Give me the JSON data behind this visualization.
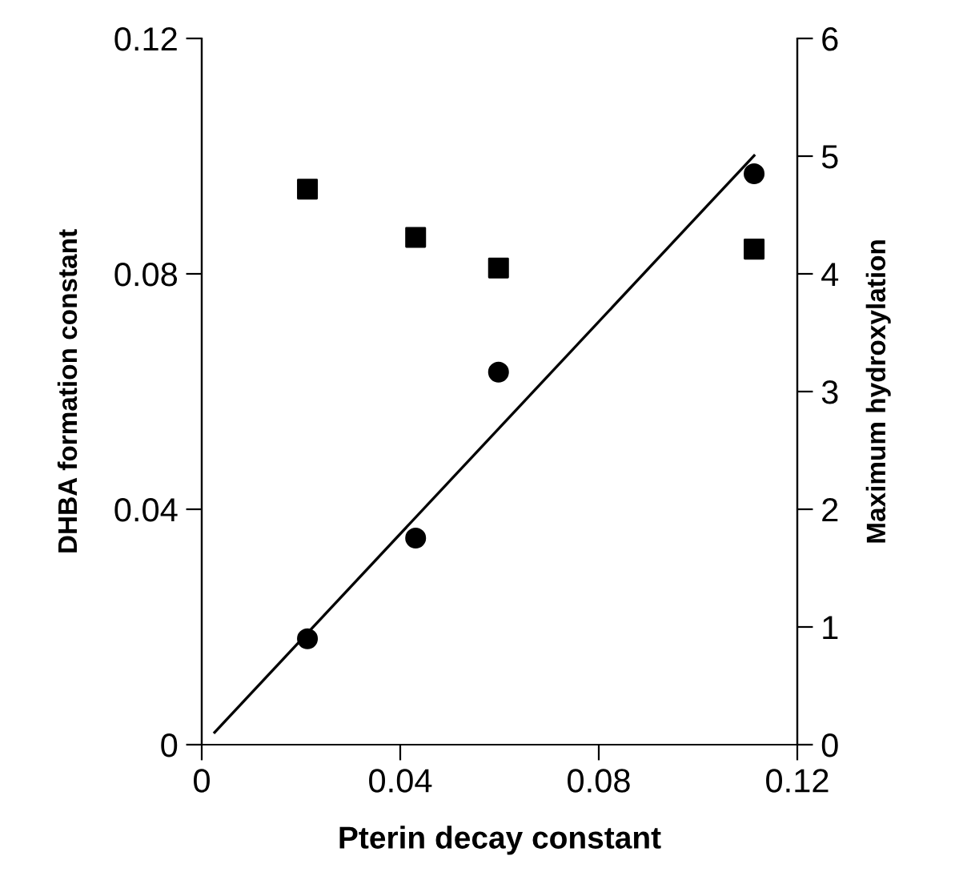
{
  "chart_data": {
    "type": "scatter",
    "xlabel": "Pterin decay constant",
    "ylabel": "DHBA formation constant",
    "y2label": "Maximum hydroxylation",
    "xlim": [
      0,
      0.12
    ],
    "xticks": [
      0,
      0.04,
      0.08,
      0.12
    ],
    "ylim": [
      0,
      0.12
    ],
    "yticks": [
      0,
      0.04,
      0.08,
      0.12
    ],
    "y2lim": [
      0,
      6
    ],
    "y2ticks": [
      0,
      1,
      2,
      3,
      4,
      5,
      6
    ],
    "grid": false,
    "legend": false,
    "series": [
      {
        "marker": "circle",
        "color": "#000000",
        "x": [
          0.0213,
          0.0431,
          0.0598,
          0.1113
        ],
        "values": [
          0.018,
          0.0351,
          0.0633,
          0.097
        ]
      },
      {
        "marker": "square",
        "color": "#000000",
        "axis": "y2",
        "x": [
          0.0213,
          0.0431,
          0.0598,
          0.1113
        ],
        "values": [
          4.72,
          4.31,
          4.05,
          4.21
        ]
      },
      {
        "type": "line",
        "marker": "none",
        "line_style": "solid",
        "color": "#000000",
        "x": [
          0.0026,
          0.1113
        ],
        "values": [
          0.0021,
          0.1001
        ]
      }
    ]
  }
}
